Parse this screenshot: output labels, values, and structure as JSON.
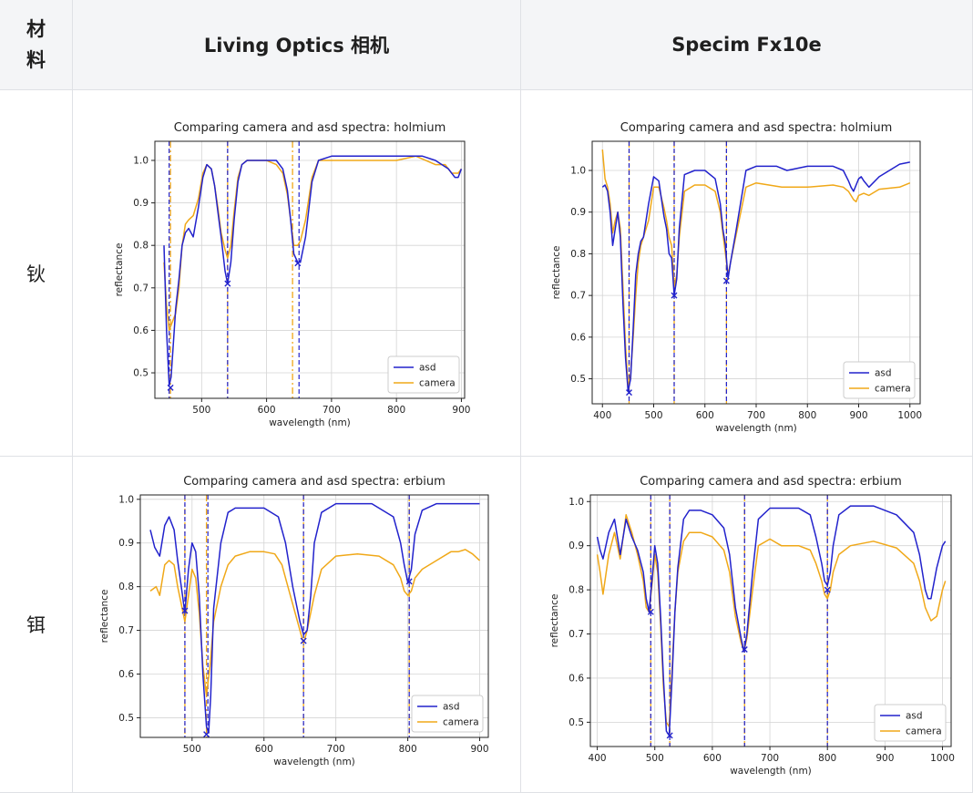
{
  "table": {
    "header": {
      "material_chars": [
        "材",
        "料"
      ],
      "col1": "Living Optics 相机",
      "col2": "Specim Fx10e"
    },
    "rows": [
      {
        "material": "钬"
      },
      {
        "material": "铒"
      }
    ]
  },
  "chart_data": [
    {
      "type": "line",
      "title": "Comparing camera and asd spectra: holmium",
      "xlabel": "wavelength (nm)",
      "ylabel": "reflectance",
      "xlim": [
        428,
        905
      ],
      "ylim": [
        0.44,
        1.045
      ],
      "xticks": [
        500,
        600,
        700,
        800,
        900
      ],
      "yticks": [
        0.5,
        0.6,
        0.7,
        0.8,
        0.9,
        1.0
      ],
      "grid": true,
      "legend": "lower-right",
      "colors": {
        "asd": "#2222cc",
        "camera": "#f0a818"
      },
      "series": [
        {
          "name": "asd",
          "x": [
            442,
            446,
            450,
            453,
            456,
            460,
            465,
            470,
            475,
            480,
            487,
            495,
            502,
            508,
            515,
            520,
            525,
            530,
            536,
            540,
            545,
            550,
            556,
            562,
            570,
            580,
            600,
            615,
            625,
            632,
            637,
            642,
            648,
            652,
            660,
            670,
            680,
            700,
            750,
            800,
            840,
            860,
            880,
            890,
            895,
            900
          ],
          "y": [
            0.8,
            0.6,
            0.47,
            0.49,
            0.56,
            0.65,
            0.72,
            0.8,
            0.83,
            0.84,
            0.82,
            0.89,
            0.96,
            0.99,
            0.98,
            0.94,
            0.88,
            0.82,
            0.74,
            0.71,
            0.76,
            0.86,
            0.95,
            0.99,
            1.0,
            1.0,
            1.0,
            1.0,
            0.98,
            0.93,
            0.86,
            0.78,
            0.76,
            0.76,
            0.82,
            0.95,
            1.0,
            1.01,
            1.01,
            1.01,
            1.01,
            1.0,
            0.98,
            0.96,
            0.96,
            0.98
          ]
        },
        {
          "name": "camera",
          "x": [
            442,
            446,
            450,
            455,
            460,
            465,
            470,
            475,
            480,
            487,
            495,
            502,
            508,
            515,
            520,
            525,
            530,
            536,
            540,
            545,
            550,
            556,
            562,
            570,
            580,
            600,
            615,
            625,
            632,
            637,
            642,
            648,
            652,
            660,
            670,
            680,
            700,
            750,
            800,
            830,
            860,
            875,
            885,
            895,
            900
          ],
          "y": [
            0.76,
            0.66,
            0.6,
            0.62,
            0.64,
            0.7,
            0.8,
            0.85,
            0.86,
            0.87,
            0.91,
            0.97,
            0.99,
            0.98,
            0.94,
            0.89,
            0.83,
            0.79,
            0.77,
            0.8,
            0.88,
            0.96,
            0.99,
            1.0,
            1.0,
            1.0,
            0.99,
            0.97,
            0.92,
            0.86,
            0.8,
            0.8,
            0.81,
            0.86,
            0.96,
            1.0,
            1.0,
            1.0,
            1.0,
            1.01,
            0.99,
            0.99,
            0.97,
            0.97,
            0.98
          ]
        }
      ],
      "markers": [
        {
          "x": 452,
          "y": 0.465
        },
        {
          "x": 540,
          "y": 0.71
        },
        {
          "x": 648,
          "y": 0.758
        }
      ],
      "vlines_asd": [
        450,
        540,
        650
      ],
      "vlines_camera": [
        452,
        540,
        640
      ]
    },
    {
      "type": "line",
      "title": "Comparing camera and asd spectra: holmium",
      "xlabel": "wavelength (nm)",
      "ylabel": "reflectance",
      "xlim": [
        380,
        1020
      ],
      "ylim": [
        0.44,
        1.07
      ],
      "xticks": [
        400,
        500,
        600,
        700,
        800,
        900,
        1000
      ],
      "yticks": [
        0.5,
        0.6,
        0.7,
        0.8,
        0.9,
        1.0
      ],
      "grid": true,
      "legend": "lower-right",
      "colors": {
        "asd": "#2222cc",
        "camera": "#f0a818"
      },
      "series": [
        {
          "name": "asd",
          "x": [
            400,
            405,
            410,
            415,
            420,
            425,
            430,
            435,
            440,
            445,
            450,
            455,
            460,
            465,
            470,
            475,
            480,
            490,
            500,
            510,
            520,
            525,
            530,
            535,
            540,
            545,
            550,
            560,
            580,
            600,
            620,
            630,
            635,
            640,
            645,
            650,
            660,
            680,
            700,
            740,
            760,
            800,
            850,
            870,
            880,
            885,
            890,
            900,
            905,
            910,
            920,
            940,
            980,
            1000
          ],
          "y": [
            0.96,
            0.965,
            0.95,
            0.9,
            0.82,
            0.86,
            0.9,
            0.84,
            0.68,
            0.55,
            0.47,
            0.5,
            0.62,
            0.75,
            0.8,
            0.83,
            0.84,
            0.92,
            0.985,
            0.975,
            0.89,
            0.86,
            0.8,
            0.79,
            0.7,
            0.74,
            0.86,
            0.99,
            1.0,
            1.0,
            0.98,
            0.92,
            0.86,
            0.82,
            0.74,
            0.78,
            0.85,
            1.0,
            1.01,
            1.01,
            1.0,
            1.01,
            1.01,
            1.0,
            0.975,
            0.96,
            0.95,
            0.98,
            0.985,
            0.975,
            0.96,
            0.985,
            1.015,
            1.02
          ]
        },
        {
          "name": "camera",
          "x": [
            400,
            405,
            410,
            415,
            420,
            425,
            430,
            435,
            440,
            445,
            450,
            455,
            460,
            465,
            470,
            475,
            480,
            490,
            500,
            510,
            520,
            525,
            530,
            535,
            540,
            545,
            550,
            560,
            580,
            600,
            620,
            630,
            635,
            640,
            645,
            650,
            660,
            680,
            700,
            750,
            800,
            850,
            870,
            880,
            890,
            895,
            900,
            910,
            920,
            940,
            980,
            1000
          ],
          "y": [
            1.05,
            0.98,
            0.96,
            0.92,
            0.85,
            0.88,
            0.9,
            0.86,
            0.72,
            0.58,
            0.48,
            0.51,
            0.6,
            0.7,
            0.78,
            0.82,
            0.84,
            0.88,
            0.96,
            0.96,
            0.91,
            0.88,
            0.84,
            0.82,
            0.72,
            0.75,
            0.84,
            0.95,
            0.965,
            0.965,
            0.95,
            0.9,
            0.85,
            0.8,
            0.75,
            0.78,
            0.84,
            0.96,
            0.97,
            0.96,
            0.96,
            0.965,
            0.96,
            0.95,
            0.93,
            0.925,
            0.94,
            0.945,
            0.94,
            0.955,
            0.96,
            0.97
          ]
        }
      ],
      "markers": [
        {
          "x": 452,
          "y": 0.467
        },
        {
          "x": 540,
          "y": 0.7
        },
        {
          "x": 642,
          "y": 0.735
        }
      ],
      "vlines_asd": [
        452,
        540,
        642
      ],
      "vlines_camera": [
        452,
        540,
        642
      ]
    },
    {
      "type": "line",
      "title": "Comparing camera and asd spectra: erbium",
      "xlabel": "wavelength (nm)",
      "ylabel": "reflectance",
      "xlim": [
        428,
        912
      ],
      "ylim": [
        0.455,
        1.01
      ],
      "xticks": [
        500,
        600,
        700,
        800,
        900
      ],
      "yticks": [
        0.5,
        0.6,
        0.7,
        0.8,
        0.9,
        1.0
      ],
      "grid": true,
      "legend": "lower-right",
      "colors": {
        "asd": "#2222cc",
        "camera": "#f0a818"
      },
      "series": [
        {
          "name": "asd",
          "x": [
            442,
            448,
            455,
            462,
            468,
            475,
            480,
            485,
            490,
            495,
            500,
            505,
            510,
            515,
            520,
            523,
            526,
            530,
            540,
            550,
            560,
            580,
            600,
            620,
            630,
            640,
            650,
            655,
            660,
            665,
            670,
            680,
            700,
            750,
            780,
            790,
            795,
            800,
            805,
            810,
            820,
            840,
            860,
            880,
            900
          ],
          "y": [
            0.93,
            0.89,
            0.87,
            0.94,
            0.96,
            0.93,
            0.86,
            0.8,
            0.74,
            0.84,
            0.9,
            0.88,
            0.78,
            0.6,
            0.48,
            0.465,
            0.55,
            0.75,
            0.9,
            0.97,
            0.98,
            0.98,
            0.98,
            0.96,
            0.9,
            0.8,
            0.72,
            0.69,
            0.7,
            0.78,
            0.9,
            0.97,
            0.99,
            0.99,
            0.96,
            0.9,
            0.85,
            0.81,
            0.84,
            0.92,
            0.975,
            0.99,
            0.99,
            0.99,
            0.99
          ]
        },
        {
          "name": "camera",
          "x": [
            442,
            450,
            455,
            462,
            468,
            475,
            480,
            485,
            490,
            495,
            500,
            505,
            510,
            515,
            520,
            525,
            530,
            540,
            550,
            560,
            580,
            600,
            615,
            625,
            630,
            640,
            650,
            655,
            660,
            670,
            680,
            700,
            730,
            760,
            780,
            790,
            795,
            800,
            805,
            810,
            820,
            840,
            860,
            870,
            880,
            890,
            900
          ],
          "y": [
            0.79,
            0.8,
            0.78,
            0.85,
            0.86,
            0.85,
            0.8,
            0.76,
            0.72,
            0.78,
            0.84,
            0.82,
            0.74,
            0.62,
            0.55,
            0.62,
            0.72,
            0.8,
            0.85,
            0.87,
            0.88,
            0.88,
            0.875,
            0.85,
            0.82,
            0.76,
            0.7,
            0.67,
            0.7,
            0.78,
            0.84,
            0.87,
            0.875,
            0.87,
            0.85,
            0.82,
            0.79,
            0.78,
            0.79,
            0.82,
            0.84,
            0.86,
            0.88,
            0.88,
            0.885,
            0.875,
            0.86
          ]
        }
      ],
      "markers": [
        {
          "x": 490,
          "y": 0.745
        },
        {
          "x": 520,
          "y": 0.462
        },
        {
          "x": 655,
          "y": 0.676
        },
        {
          "x": 802,
          "y": 0.812
        }
      ],
      "vlines_asd": [
        490,
        522,
        655,
        802
      ],
      "vlines_camera": [
        490,
        520,
        655,
        802
      ]
    },
    {
      "type": "line",
      "title": "Comparing camera and asd spectra: erbium",
      "xlabel": "wavelength (nm)",
      "ylabel": "reflectance",
      "xlim": [
        388,
        1015
      ],
      "ylim": [
        0.445,
        1.015
      ],
      "xticks": [
        400,
        500,
        600,
        700,
        800,
        900,
        1000
      ],
      "yticks": [
        0.5,
        0.6,
        0.7,
        0.8,
        0.9,
        1.0
      ],
      "grid": true,
      "legend": "lower-right",
      "colors": {
        "asd": "#2222cc",
        "camera": "#f0a818"
      },
      "series": [
        {
          "name": "asd",
          "x": [
            400,
            405,
            410,
            420,
            430,
            440,
            450,
            460,
            470,
            480,
            485,
            490,
            495,
            500,
            505,
            510,
            515,
            520,
            525,
            530,
            535,
            540,
            550,
            560,
            580,
            600,
            620,
            630,
            640,
            650,
            655,
            660,
            670,
            680,
            700,
            720,
            750,
            770,
            780,
            790,
            795,
            800,
            805,
            810,
            820,
            840,
            880,
            920,
            950,
            960,
            970,
            975,
            980,
            990,
            1000,
            1005
          ],
          "y": [
            0.92,
            0.89,
            0.87,
            0.93,
            0.96,
            0.88,
            0.96,
            0.92,
            0.89,
            0.84,
            0.78,
            0.75,
            0.82,
            0.9,
            0.86,
            0.74,
            0.6,
            0.48,
            0.47,
            0.6,
            0.75,
            0.85,
            0.96,
            0.98,
            0.98,
            0.97,
            0.94,
            0.88,
            0.76,
            0.69,
            0.66,
            0.7,
            0.84,
            0.96,
            0.985,
            0.985,
            0.985,
            0.97,
            0.92,
            0.86,
            0.82,
            0.81,
            0.84,
            0.9,
            0.97,
            0.99,
            0.99,
            0.97,
            0.93,
            0.88,
            0.8,
            0.78,
            0.78,
            0.85,
            0.9,
            0.91
          ]
        },
        {
          "name": "camera",
          "x": [
            400,
            405,
            410,
            420,
            430,
            440,
            450,
            460,
            470,
            480,
            485,
            490,
            495,
            500,
            505,
            510,
            515,
            520,
            525,
            530,
            535,
            540,
            550,
            560,
            580,
            600,
            620,
            630,
            640,
            650,
            655,
            660,
            670,
            680,
            700,
            720,
            750,
            770,
            780,
            790,
            795,
            800,
            805,
            810,
            820,
            840,
            880,
            920,
            950,
            960,
            970,
            980,
            990,
            1000,
            1005
          ],
          "y": [
            0.88,
            0.84,
            0.79,
            0.88,
            0.93,
            0.87,
            0.97,
            0.93,
            0.88,
            0.82,
            0.76,
            0.75,
            0.81,
            0.88,
            0.84,
            0.72,
            0.58,
            0.5,
            0.49,
            0.62,
            0.75,
            0.84,
            0.91,
            0.93,
            0.93,
            0.92,
            0.89,
            0.84,
            0.74,
            0.68,
            0.66,
            0.69,
            0.8,
            0.9,
            0.915,
            0.9,
            0.9,
            0.89,
            0.86,
            0.82,
            0.79,
            0.78,
            0.8,
            0.84,
            0.88,
            0.9,
            0.91,
            0.895,
            0.86,
            0.82,
            0.76,
            0.73,
            0.74,
            0.8,
            0.82
          ]
        }
      ],
      "markers": [
        {
          "x": 493,
          "y": 0.75
        },
        {
          "x": 526,
          "y": 0.47
        },
        {
          "x": 656,
          "y": 0.665
        },
        {
          "x": 800,
          "y": 0.8
        }
      ],
      "vlines_asd": [
        493,
        526,
        656,
        800
      ],
      "vlines_camera": [
        493,
        526,
        656,
        800
      ]
    }
  ]
}
